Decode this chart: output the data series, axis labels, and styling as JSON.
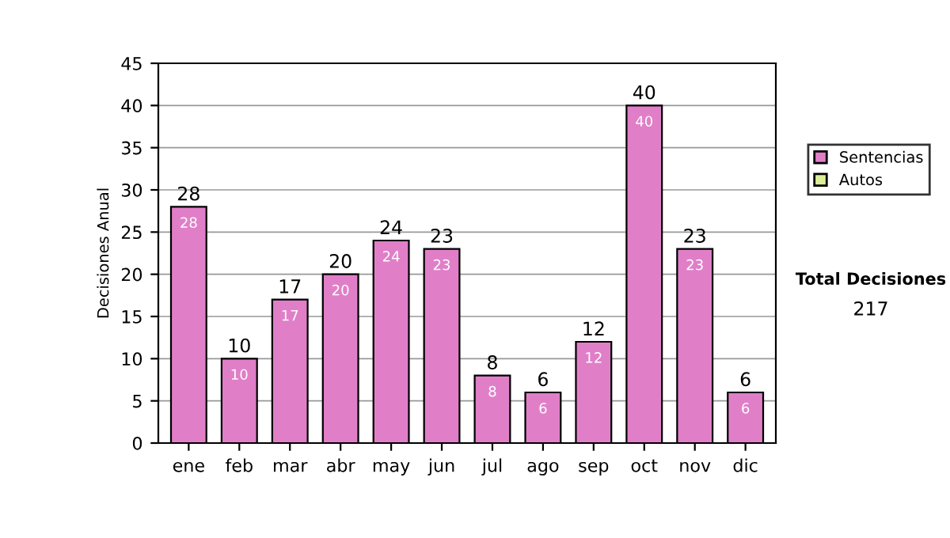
{
  "chart_data": {
    "type": "bar",
    "stacked": true,
    "ylabel": "Decisiones Anual",
    "categories": [
      "ene",
      "feb",
      "mar",
      "abr",
      "may",
      "jun",
      "jul",
      "ago",
      "sep",
      "oct",
      "nov",
      "dic"
    ],
    "series": [
      {
        "name": "Sentencias",
        "color": "#e07fc8",
        "values": [
          28,
          10,
          17,
          20,
          24,
          23,
          8,
          6,
          12,
          40,
          23,
          6
        ],
        "value_labels": [
          "28",
          "10",
          "17",
          "20",
          "24",
          "23",
          "8",
          "6",
          "12",
          "40",
          "23",
          "6"
        ]
      },
      {
        "name": "Autos",
        "color": "#ddee99",
        "values": [
          0,
          0,
          0,
          0,
          0,
          0,
          0,
          0,
          0,
          0,
          0,
          0
        ]
      }
    ],
    "totals": [
      "28",
      "10",
      "17",
      "20",
      "24",
      "23",
      "8",
      "6",
      "12",
      "40",
      "23",
      "6"
    ],
    "ylim": [
      0,
      45
    ],
    "yticks": [
      0,
      5,
      10,
      15,
      20,
      25,
      30,
      35,
      40,
      45
    ],
    "grid": "y",
    "legend": "right",
    "annotations": [
      "Total Decisiones",
      "217"
    ]
  }
}
